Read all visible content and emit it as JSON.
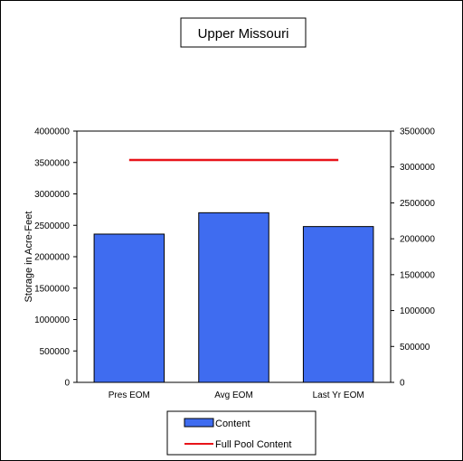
{
  "chart_data": {
    "type": "bar",
    "title": "Upper Missouri",
    "ylabel": "Storage in Acre-Feet",
    "categories": [
      "Pres EOM",
      "Avg EOM",
      "Last Yr EOM"
    ],
    "series": [
      {
        "name": "Content",
        "type": "bar",
        "axis": "left",
        "values": [
          2360000,
          2700000,
          2480000
        ],
        "color": "#3f6cf0"
      },
      {
        "name": "Full Pool Content",
        "type": "line",
        "axis": "left",
        "value": 3540000,
        "color": "#e8141a"
      }
    ],
    "ylim_left": [
      0,
      4000000
    ],
    "yticks_left": [
      "0",
      "500000",
      "1000000",
      "1500000",
      "2000000",
      "2500000",
      "3000000",
      "3500000",
      "4000000"
    ],
    "ylim_right": [
      0,
      3500000
    ],
    "yticks_right": [
      "0",
      "500000",
      "1000000",
      "1500000",
      "2000000",
      "2500000",
      "3000000",
      "3500000"
    ],
    "grid": false,
    "legend_position": "bottom"
  }
}
